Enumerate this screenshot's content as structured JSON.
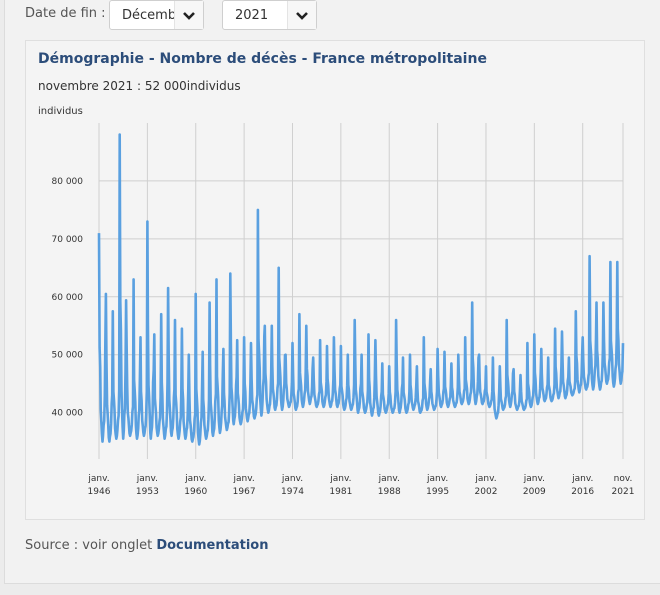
{
  "filter": {
    "end_date_label": "Date de fin :",
    "month_value": "Décembr",
    "year_value": "2021"
  },
  "chart_data": {
    "type": "line",
    "title": "Démographie - Nombre de décès - France métropolitaine",
    "subtitle": "novembre 2021 : 52 000individus",
    "ylabel": "individus",
    "ylim": [
      32000,
      90000
    ],
    "y_ticks": [
      40000,
      50000,
      60000,
      70000,
      80000
    ],
    "y_tick_labels": [
      "40 000",
      "50 000",
      "60 000",
      "70 000",
      "80 000"
    ],
    "x_range": [
      1946.0,
      2021.83
    ],
    "x_tick_positions": [
      1946,
      1953,
      1960,
      1967,
      1974,
      1981,
      1988,
      1995,
      2002,
      2009,
      2016,
      2021.83
    ],
    "x_tick_labels": [
      [
        "janv.",
        "1946"
      ],
      [
        "janv.",
        "1953"
      ],
      [
        "janv.",
        "1960"
      ],
      [
        "janv.",
        "1967"
      ],
      [
        "janv.",
        "1974"
      ],
      [
        "janv.",
        "1981"
      ],
      [
        "janv.",
        "1988"
      ],
      [
        "janv.",
        "1995"
      ],
      [
        "janv.",
        "2002"
      ],
      [
        "janv.",
        "2009"
      ],
      [
        "janv.",
        "2016"
      ],
      [
        "nov.",
        "2021"
      ]
    ],
    "grid": true,
    "line_color": "#5aa0e0",
    "series": [
      {
        "name": "Nombre de décès",
        "annual_points": [
          [
            1946,
            71000,
            35000
          ],
          [
            1947,
            60500,
            35000
          ],
          [
            1948,
            57500,
            35500
          ],
          [
            1949,
            88000,
            35500
          ],
          [
            1950,
            52000,
            36000
          ],
          [
            1951,
            63000,
            35500
          ],
          [
            1952,
            53000,
            36000
          ],
          [
            1953,
            73000,
            35500
          ],
          [
            1954,
            53500,
            36000
          ],
          [
            1955,
            57000,
            35500
          ],
          [
            1956,
            61500,
            36000
          ],
          [
            1957,
            56000,
            35500
          ],
          [
            1958,
            54500,
            35500
          ],
          [
            1959,
            50000,
            35000
          ],
          [
            1960,
            60500,
            34500
          ],
          [
            1961,
            50500,
            35500
          ],
          [
            1962,
            59000,
            36000
          ],
          [
            1963,
            63000,
            36500
          ],
          [
            1964,
            51000,
            37000
          ],
          [
            1965,
            64000,
            38000
          ],
          [
            1966,
            52500,
            38000
          ],
          [
            1967,
            53000,
            38500
          ],
          [
            1968,
            52000,
            39000
          ],
          [
            1969,
            75000,
            39500
          ],
          [
            1970,
            55000,
            40000
          ],
          [
            1971,
            55000,
            40500
          ],
          [
            1972,
            65000,
            40500
          ],
          [
            1973,
            50000,
            41000
          ],
          [
            1974,
            52000,
            40500
          ],
          [
            1975,
            57000,
            41000
          ],
          [
            1976,
            55000,
            41500
          ],
          [
            1977,
            49500,
            41000
          ],
          [
            1978,
            52500,
            41000
          ],
          [
            1979,
            51500,
            41000
          ],
          [
            1980,
            53000,
            41000
          ],
          [
            1981,
            51500,
            40500
          ],
          [
            1982,
            50000,
            40500
          ],
          [
            1983,
            56000,
            40000
          ],
          [
            1984,
            50000,
            40000
          ],
          [
            1985,
            53500,
            39500
          ],
          [
            1986,
            52500,
            39500
          ],
          [
            1987,
            48500,
            40000
          ],
          [
            1988,
            48000,
            40000
          ],
          [
            1989,
            56000,
            40000
          ],
          [
            1990,
            49500,
            40000
          ],
          [
            1991,
            50000,
            40500
          ],
          [
            1992,
            48000,
            40000
          ],
          [
            1993,
            53000,
            40500
          ],
          [
            1994,
            47500,
            40500
          ],
          [
            1995,
            51000,
            41000
          ],
          [
            1996,
            50500,
            41000
          ],
          [
            1997,
            48500,
            41000
          ],
          [
            1998,
            50000,
            41500
          ],
          [
            1999,
            53000,
            41500
          ],
          [
            2000,
            59000,
            41500
          ],
          [
            2001,
            50000,
            41500
          ],
          [
            2002,
            48000,
            41000
          ],
          [
            2003,
            49500,
            39000
          ],
          [
            2004,
            48000,
            40500
          ],
          [
            2005,
            56000,
            41000
          ],
          [
            2006,
            47500,
            40500
          ],
          [
            2007,
            46500,
            40500
          ],
          [
            2008,
            52000,
            41000
          ],
          [
            2009,
            53500,
            41500
          ],
          [
            2010,
            51000,
            42000
          ],
          [
            2011,
            49500,
            42000
          ],
          [
            2012,
            54500,
            42500
          ],
          [
            2013,
            54000,
            42500
          ],
          [
            2014,
            49500,
            43000
          ],
          [
            2015,
            57500,
            43500
          ],
          [
            2016,
            53000,
            44000
          ],
          [
            2017,
            67000,
            44000
          ],
          [
            2018,
            59000,
            44000
          ],
          [
            2019,
            59000,
            45000
          ],
          [
            2020,
            66000,
            44500
          ],
          [
            2021,
            66000,
            45000
          ]
        ],
        "last_value": 52000
      }
    ]
  },
  "source": {
    "prefix": "Source : voir onglet",
    "link": "Documentation"
  }
}
